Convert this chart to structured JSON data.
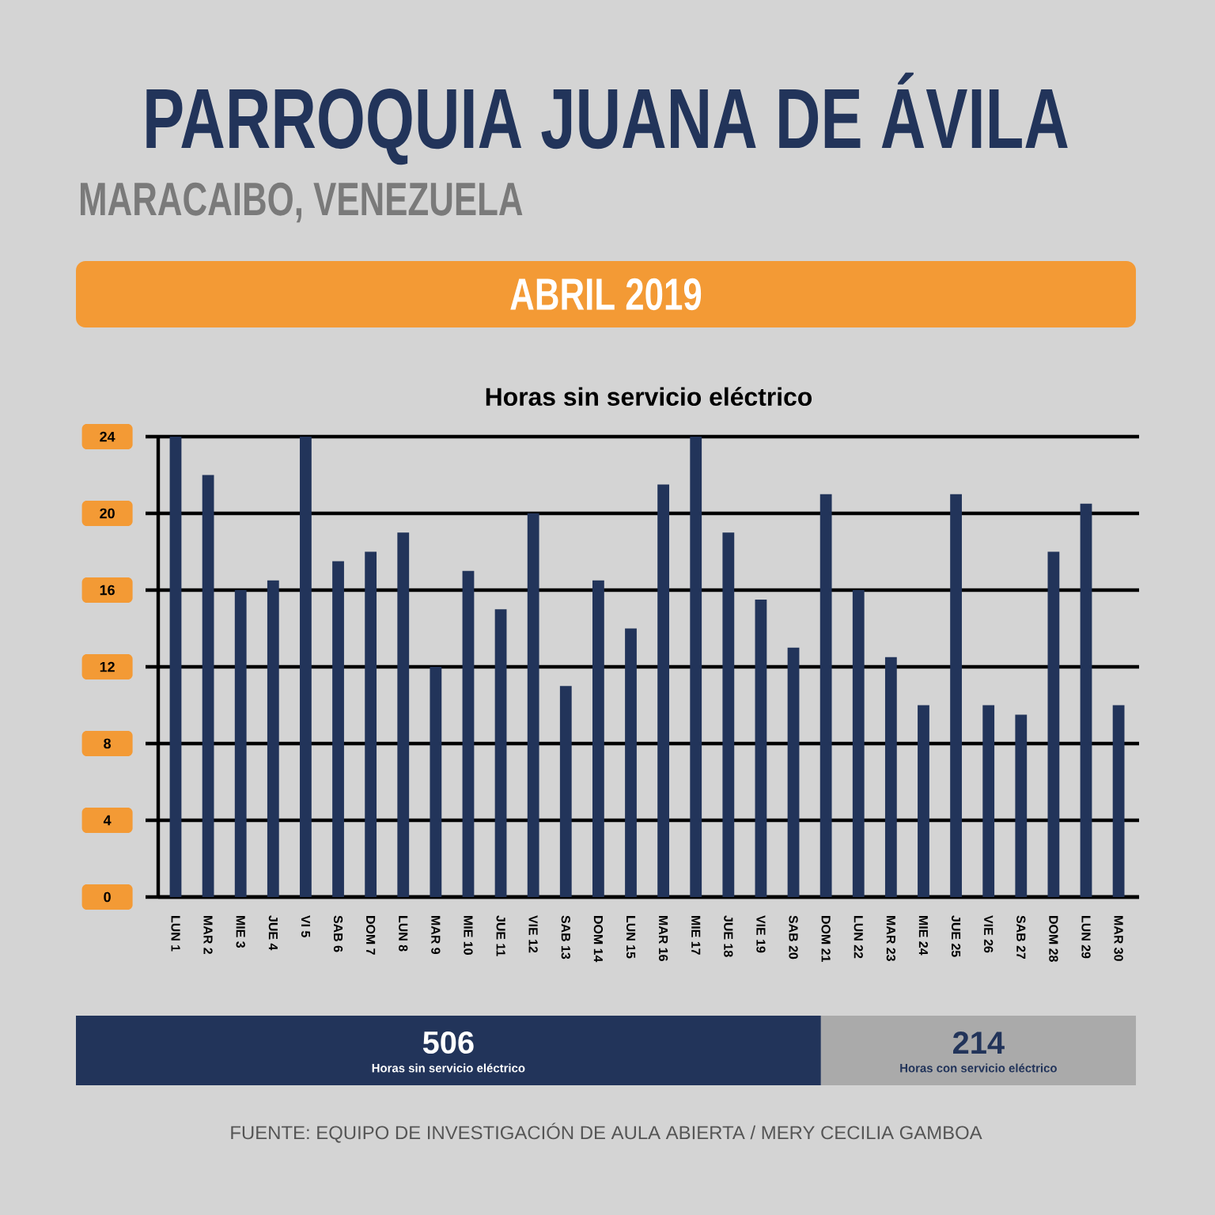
{
  "chart_data": [
    {
      "type": "other",
      "title": "PARROQUIA JUANA DE ÁVILA",
      "subtitle": "MARACAIBO, VENEZUELA",
      "annotations": [
        "ABRIL 2019"
      ]
    },
    {
      "type": "bar",
      "title": "Horas sin servicio eléctrico",
      "categories": [
        "LUN 1",
        "MAR 2",
        "MIE 3",
        "JUE 4",
        "VI 5",
        "SAB 6",
        "DOM 7",
        "LUN 8",
        "MAR 9",
        "MIE 10",
        "JUE 11",
        "VIE 12",
        "SAB 13",
        "DOM 14",
        "LUN 15",
        "MAR 16",
        "MIE 17",
        "JUE 18",
        "VIE 19",
        "SAB 20",
        "DOM 21",
        "LUN 22",
        "MAR 23",
        "MIE 24",
        "JUE 25",
        "VIE 26",
        "SAB 27",
        "DOM 28",
        "LUN 29",
        "MAR 30"
      ],
      "values": [
        24,
        22,
        16,
        16.5,
        24,
        17.5,
        18,
        19,
        12,
        17,
        15,
        20,
        11,
        16.5,
        14,
        21.5,
        24,
        19,
        15.5,
        13,
        21,
        16,
        12.5,
        10,
        21,
        10,
        9.5,
        18,
        20.5,
        10
      ],
      "color": "#22345a",
      "ylim": [
        0,
        24
      ],
      "yticks": [
        0,
        4,
        8,
        12,
        16,
        20,
        24
      ],
      "grid": "y"
    },
    {
      "type": "bar",
      "orientation": "horizontal",
      "stacked": true,
      "categories": [
        null
      ],
      "data_labels": true,
      "series": [
        {
          "name": "Horas sin servicio eléctrico",
          "color": "#22345a",
          "values": [
            506
          ]
        },
        {
          "name": "Horas con servicio eléctrico",
          "color": "#aaaaaa",
          "values": [
            214
          ]
        }
      ],
      "annotations": [
        "FUENTE: EQUIPO DE INVESTIGACIÓN DE AULA ABIERTA / MERY CECILIA GAMBOA"
      ]
    }
  ]
}
